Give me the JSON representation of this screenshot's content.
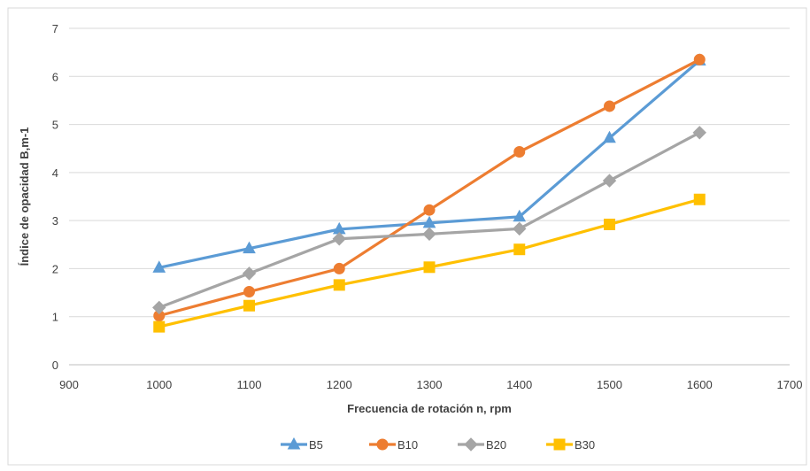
{
  "chart_data": {
    "type": "line",
    "title": "",
    "xlabel": "Frecuencia de rotación n, rpm",
    "ylabel": "Índice de opacidad B,m-1",
    "xlim": [
      900,
      1700
    ],
    "ylim": [
      0,
      7
    ],
    "xticks": [
      "900",
      "1000",
      "1100",
      "1200",
      "1300",
      "1400",
      "1500",
      "1600",
      "1700"
    ],
    "yticks": [
      "0",
      "1",
      "2",
      "3",
      "4",
      "5",
      "6",
      "7"
    ],
    "x": [
      1000,
      1100,
      1200,
      1300,
      1400,
      1500,
      1600
    ],
    "grid": "horizontal",
    "legend_position": "bottom",
    "series": [
      {
        "name": "B5",
        "color": "#5b9bd5",
        "marker": "triangle",
        "values": [
          2.02,
          2.42,
          2.82,
          2.95,
          3.08,
          4.72,
          6.33
        ]
      },
      {
        "name": "B10",
        "color": "#ed7d31",
        "marker": "circle",
        "values": [
          1.02,
          1.52,
          2.0,
          3.22,
          4.43,
          5.38,
          6.35
        ]
      },
      {
        "name": "B20",
        "color": "#a5a5a5",
        "marker": "diamond",
        "values": [
          1.19,
          1.9,
          2.62,
          2.72,
          2.83,
          3.83,
          4.83
        ]
      },
      {
        "name": "B30",
        "color": "#ffc000",
        "marker": "square",
        "values": [
          0.79,
          1.23,
          1.66,
          2.03,
          2.4,
          2.92,
          3.44
        ]
      }
    ]
  }
}
